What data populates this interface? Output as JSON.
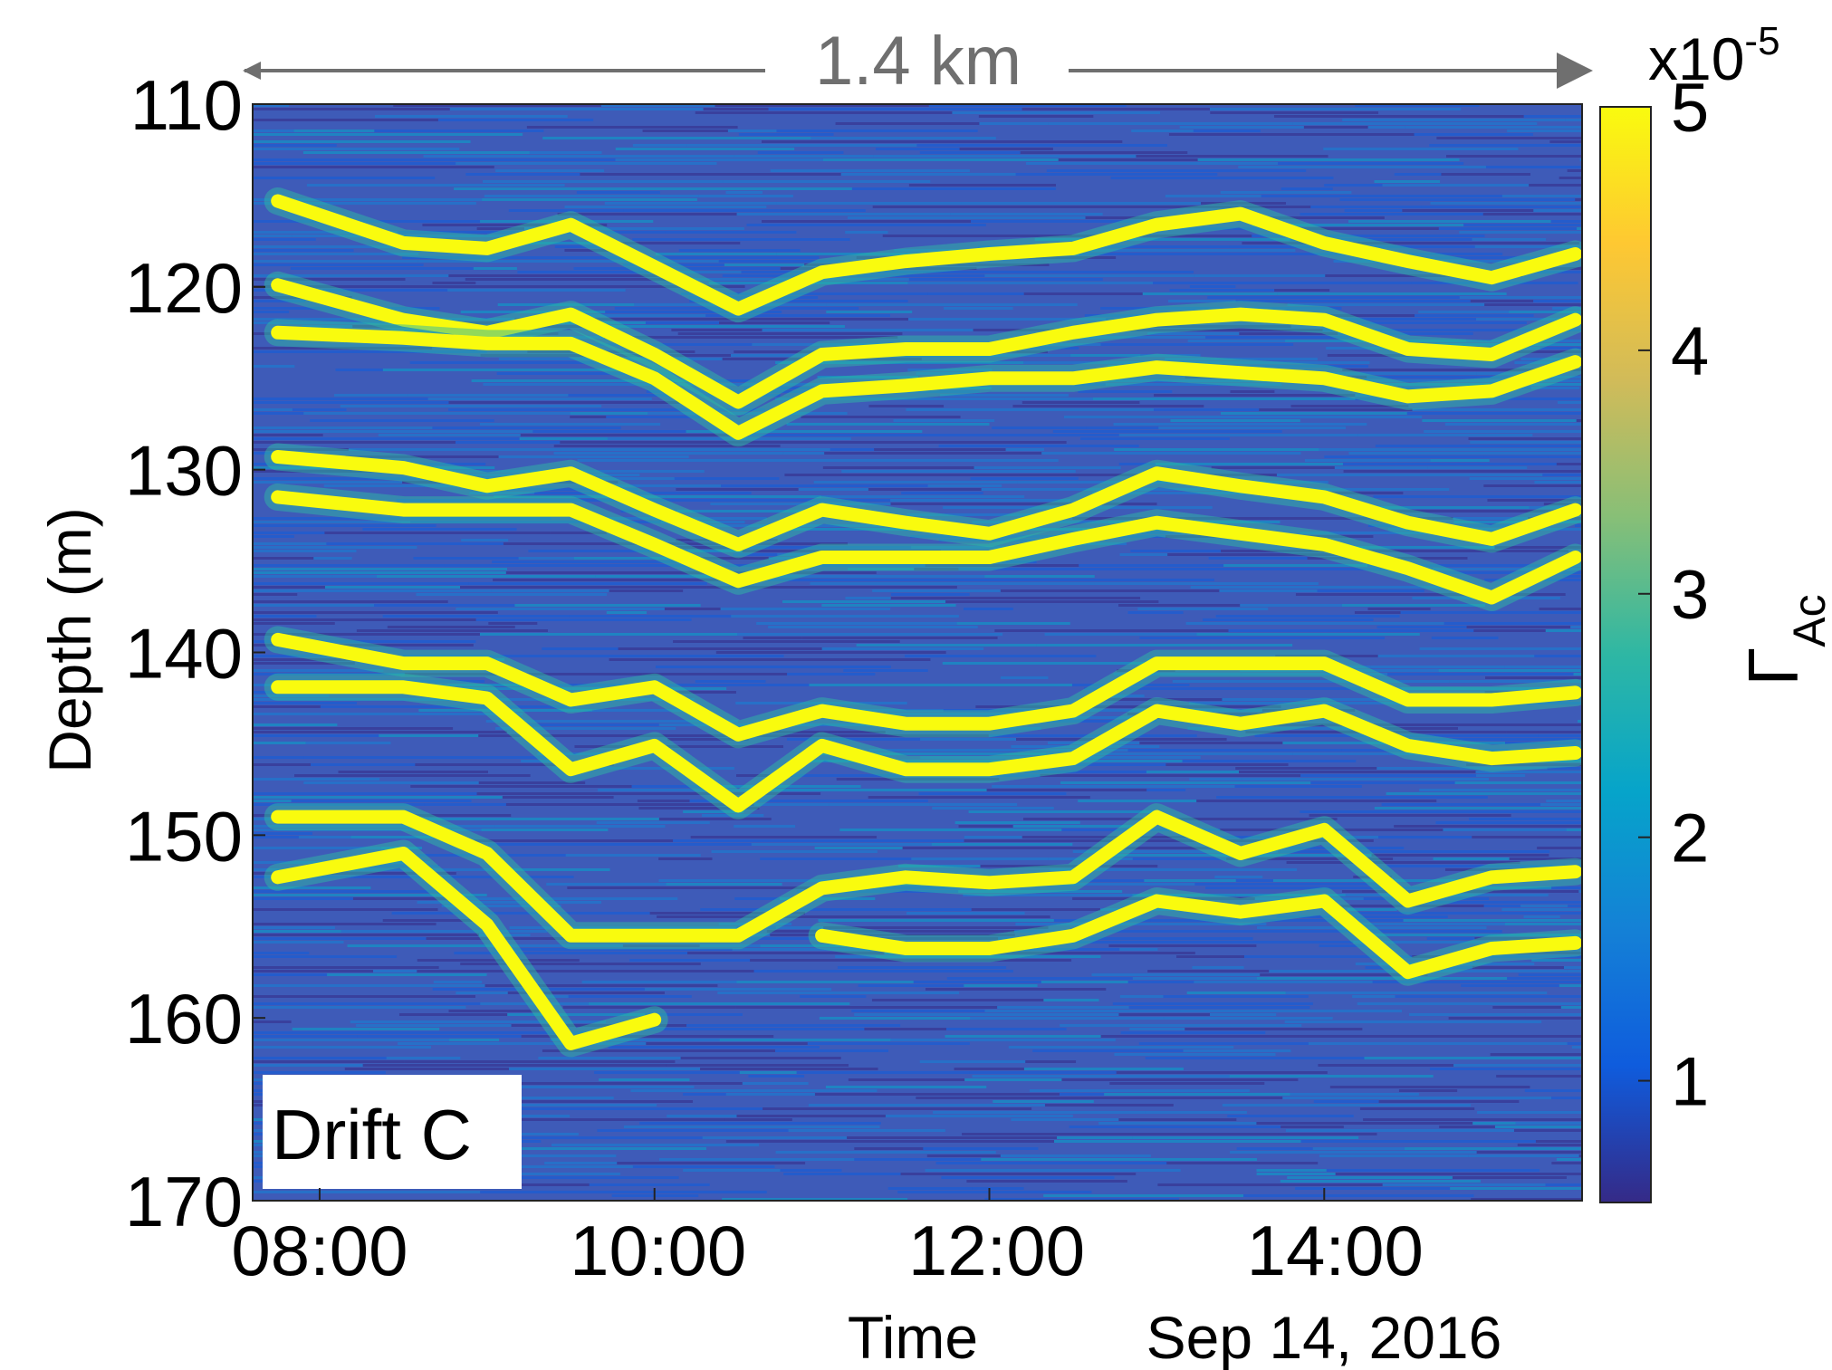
{
  "chart_data": {
    "type": "line",
    "annotation": "1.4 km",
    "panel_label": "Drift C",
    "xlabel": "Time",
    "date_label": "Sep 14, 2016",
    "ylabel": "Depth (m)",
    "xlim": [
      7.6,
      15.54
    ],
    "xticks": [
      {
        "value": 8,
        "label": "08:00"
      },
      {
        "value": 10,
        "label": "10:00"
      },
      {
        "value": 12,
        "label": "12:00"
      },
      {
        "value": 14,
        "label": "14:00"
      }
    ],
    "ylim": [
      110,
      170
    ],
    "yreverse": true,
    "yticks": [
      110,
      120,
      130,
      140,
      150,
      160,
      170
    ],
    "background_color": "#3e5bb8",
    "x": [
      7.75,
      8.5,
      9.0,
      9.5,
      10.0,
      10.5,
      11.0,
      11.5,
      12.0,
      12.5,
      13.0,
      13.5,
      14.0,
      14.5,
      15.0,
      15.5
    ],
    "series": [
      {
        "color": "#f9fb0e",
        "values": [
          115.3,
          117.6,
          117.9,
          116.6,
          118.9,
          121.2,
          119.2,
          118.6,
          118.2,
          117.9,
          116.6,
          116.0,
          117.6,
          118.6,
          119.5,
          118.2
        ]
      },
      {
        "color": "#f9fb0e",
        "values": [
          119.9,
          121.8,
          122.5,
          121.5,
          123.7,
          126.3,
          123.7,
          123.4,
          123.4,
          122.5,
          121.8,
          121.5,
          121.8,
          123.4,
          123.7,
          121.8
        ]
      },
      {
        "color": "#f9fb0e",
        "values": [
          122.5,
          122.8,
          123.1,
          123.1,
          125.0,
          128.0,
          125.7,
          125.4,
          125.0,
          125.0,
          124.4,
          124.7,
          125.0,
          126.0,
          125.7,
          124.1
        ]
      },
      {
        "color": "#f9fb0e",
        "values": [
          129.3,
          129.9,
          130.9,
          130.2,
          132.2,
          134.1,
          132.2,
          132.9,
          133.5,
          132.2,
          130.2,
          130.9,
          131.5,
          132.9,
          133.8,
          132.2
        ]
      },
      {
        "color": "#f9fb0e",
        "values": [
          131.5,
          132.2,
          132.2,
          132.2,
          134.1,
          136.1,
          134.8,
          134.8,
          134.8,
          133.8,
          132.9,
          133.5,
          134.1,
          135.4,
          137.0,
          134.8
        ]
      },
      {
        "color": "#f9fb0e",
        "values": [
          139.3,
          140.6,
          140.6,
          142.6,
          141.9,
          144.5,
          143.2,
          143.9,
          143.9,
          143.2,
          140.6,
          140.6,
          140.6,
          142.6,
          142.6,
          142.2
        ]
      },
      {
        "color": "#f9fb0e",
        "values": [
          141.9,
          141.9,
          142.5,
          146.4,
          145.1,
          148.4,
          145.1,
          146.4,
          146.4,
          145.8,
          143.2,
          143.9,
          143.2,
          145.1,
          145.8,
          145.5
        ]
      },
      {
        "color": "#f9fb0e",
        "values": [
          149.0,
          149.0,
          151.0,
          155.5,
          155.5,
          155.5,
          152.9,
          152.3,
          152.6,
          152.3,
          149.0,
          151.0,
          149.7,
          153.6,
          152.3,
          152.0
        ]
      },
      {
        "color": "#f9fb0e",
        "values": [
          152.3,
          151.0,
          154.9,
          161.4,
          160.1,
          null,
          155.5,
          156.2,
          156.2,
          155.5,
          153.6,
          154.2,
          153.6,
          157.5,
          156.2,
          155.9
        ]
      }
    ],
    "colorbar": {
      "lim": [
        0.5,
        5
      ],
      "ticks": [
        1,
        2,
        3,
        4,
        5
      ],
      "label": "Γ",
      "label_sub": "Ac",
      "multiplier": "x10",
      "exponent": "-5",
      "colormap": [
        "#352a87",
        "#0f5cdd",
        "#1481d6",
        "#06a4ca",
        "#2eb7a4",
        "#87bf77",
        "#d1bb59",
        "#fec832",
        "#f9fb0e"
      ]
    }
  }
}
